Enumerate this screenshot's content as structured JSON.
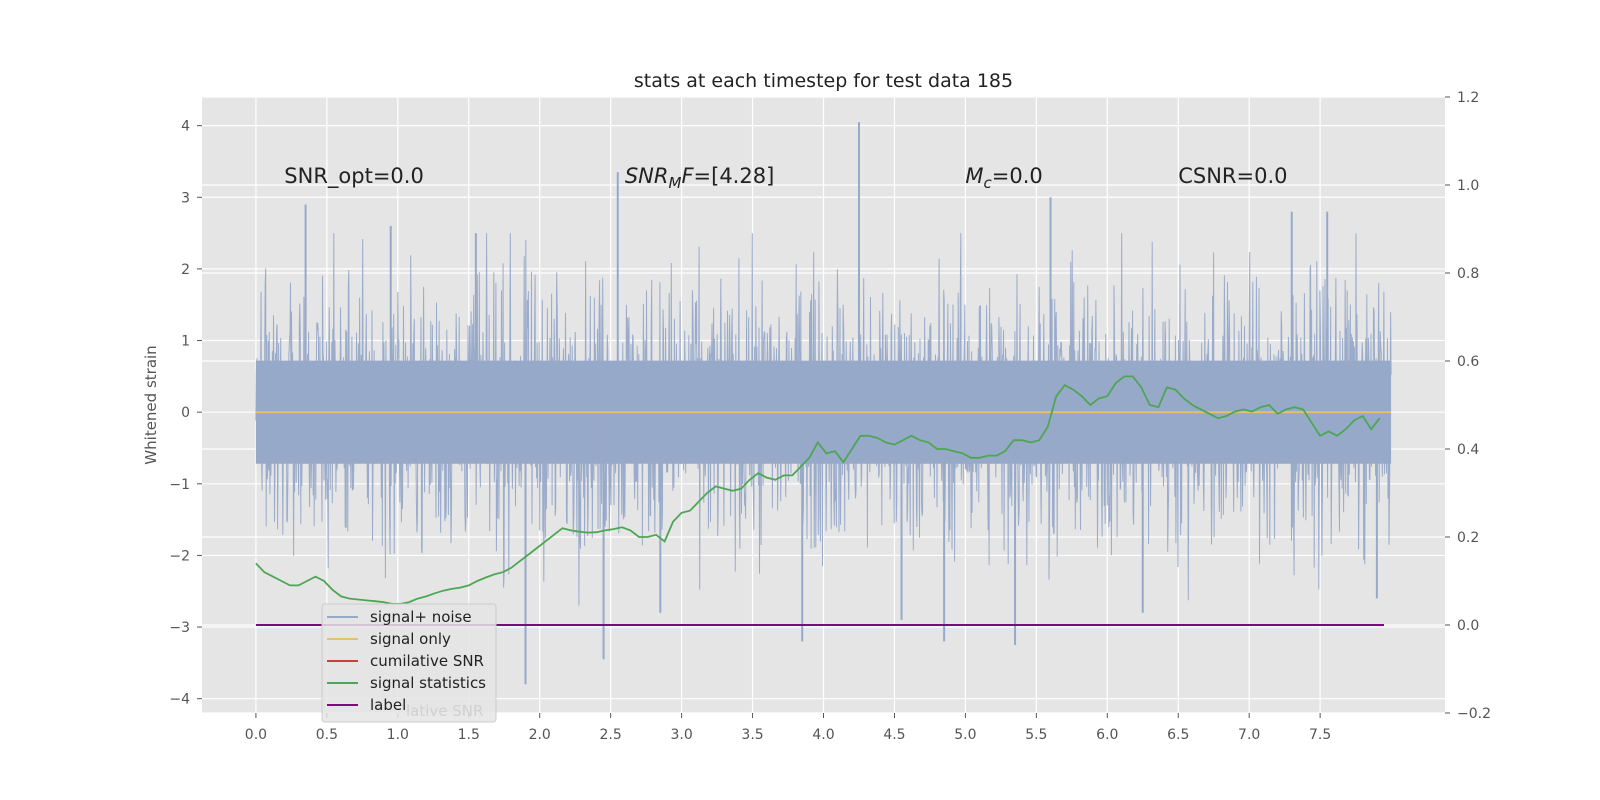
{
  "chart_data": {
    "type": "line",
    "title": "stats at each timestep for test data 185",
    "ylabel": "Whitened strain",
    "xlim": [
      -0.38,
      8.38
    ],
    "ylim": [
      -4.2,
      4.4
    ],
    "y2lim": [
      -0.2,
      1.2
    ],
    "xticks": [
      "0.0",
      "0.5",
      "1.0",
      "1.5",
      "2.0",
      "2.5",
      "3.0",
      "3.5",
      "4.0",
      "4.5",
      "5.0",
      "5.5",
      "6.0",
      "6.5",
      "7.0",
      "7.5"
    ],
    "yticks": [
      "4",
      "3",
      "2",
      "1",
      "0",
      "−1",
      "−2",
      "−3",
      "−4"
    ],
    "y2ticks": [
      "1.2",
      "1.0",
      "0.8",
      "0.6",
      "0.4",
      "0.2",
      "0.0",
      "−0.2"
    ],
    "grid": true,
    "legend_position": "lower-left",
    "colors": {
      "background": "#e5e5e5",
      "signal_noise": "#97a9c9",
      "signal_only": "#e7c064",
      "cumulative_snr": "#d03b3b",
      "signal_statistics": "#4ea654",
      "label": "#7b0a7b"
    },
    "annotations": [
      {
        "text": "SNR_opt=0.0",
        "x": 0.2,
        "y": 3.3
      },
      {
        "text": "F=[4.28]",
        "math_prefix": "SNR",
        "math_sub": "M",
        "x": 2.6,
        "y": 3.3
      },
      {
        "text": "=0.0",
        "math_prefix": "M",
        "math_sub": "c",
        "x": 5.0,
        "y": 3.3
      },
      {
        "text": "CSNR=0.0",
        "x": 6.5,
        "y": 3.3
      }
    ],
    "noise_band": {
      "x_start": 0.0,
      "x_end": 8.0,
      "typical_min": -1.6,
      "typical_max": 1.6
    },
    "noise_spikes": [
      {
        "x": 0.35,
        "y": 2.9
      },
      {
        "x": 0.95,
        "y": 2.6
      },
      {
        "x": 1.55,
        "y": 2.5
      },
      {
        "x": 1.9,
        "y": -3.8
      },
      {
        "x": 2.45,
        "y": -3.45
      },
      {
        "x": 2.55,
        "y": 3.35
      },
      {
        "x": 2.85,
        "y": -2.8
      },
      {
        "x": 3.85,
        "y": -3.2
      },
      {
        "x": 4.25,
        "y": 4.05
      },
      {
        "x": 4.55,
        "y": -2.9
      },
      {
        "x": 4.85,
        "y": -3.2
      },
      {
        "x": 5.35,
        "y": -3.25
      },
      {
        "x": 5.6,
        "y": 3.0
      },
      {
        "x": 6.25,
        "y": -2.8
      },
      {
        "x": 7.3,
        "y": 2.8
      },
      {
        "x": 7.55,
        "y": 2.8
      },
      {
        "x": 7.9,
        "y": -2.6
      }
    ],
    "series": [
      {
        "name": "signal+ noise",
        "axis": "left",
        "values": [],
        "note_type": "noise"
      },
      {
        "name": "signal only",
        "axis": "left",
        "x": [
          0.0,
          8.0
        ],
        "values": [
          0.0,
          0.0
        ]
      },
      {
        "name": "cumilative SNR",
        "axis": "right",
        "x": [],
        "values": []
      },
      {
        "name": "signal statistics",
        "axis": "right",
        "x": [
          0.0,
          0.06,
          0.12,
          0.18,
          0.24,
          0.3,
          0.36,
          0.42,
          0.48,
          0.54,
          0.6,
          0.66,
          0.72,
          0.78,
          0.84,
          0.9,
          0.96,
          1.02,
          1.08,
          1.14,
          1.2,
          1.26,
          1.32,
          1.38,
          1.44,
          1.5,
          1.56,
          1.62,
          1.68,
          1.74,
          1.8,
          1.86,
          1.92,
          1.98,
          2.04,
          2.1,
          2.16,
          2.22,
          2.28,
          2.34,
          2.4,
          2.46,
          2.52,
          2.58,
          2.64,
          2.7,
          2.76,
          2.82,
          2.88,
          2.94,
          3.0,
          3.06,
          3.12,
          3.18,
          3.24,
          3.3,
          3.36,
          3.42,
          3.48,
          3.54,
          3.6,
          3.66,
          3.72,
          3.78,
          3.84,
          3.9,
          3.96,
          4.02,
          4.08,
          4.14,
          4.2,
          4.26,
          4.32,
          4.38,
          4.44,
          4.5,
          4.56,
          4.62,
          4.68,
          4.74,
          4.8,
          4.86,
          4.92,
          4.98,
          5.04,
          5.1,
          5.16,
          5.22,
          5.28,
          5.34,
          5.4,
          5.46,
          5.52,
          5.58,
          5.64,
          5.7,
          5.76,
          5.82,
          5.88,
          5.94,
          6.0,
          6.06,
          6.12,
          6.18,
          6.24,
          6.3,
          6.36,
          6.42,
          6.48,
          6.54,
          6.6,
          6.66,
          6.72,
          6.78,
          6.84,
          6.9,
          6.96,
          7.02,
          7.08,
          7.14,
          7.2,
          7.26,
          7.32,
          7.38,
          7.44,
          7.5,
          7.56,
          7.62,
          7.68,
          7.74,
          7.8,
          7.86,
          7.92
        ],
        "values": [
          0.14,
          0.12,
          0.11,
          0.1,
          0.09,
          0.09,
          0.1,
          0.11,
          0.1,
          0.08,
          0.065,
          0.06,
          0.058,
          0.056,
          0.054,
          0.052,
          0.048,
          0.048,
          0.052,
          0.06,
          0.065,
          0.072,
          0.078,
          0.082,
          0.085,
          0.09,
          0.1,
          0.108,
          0.115,
          0.12,
          0.13,
          0.145,
          0.16,
          0.175,
          0.19,
          0.205,
          0.22,
          0.215,
          0.212,
          0.21,
          0.211,
          0.215,
          0.218,
          0.222,
          0.215,
          0.2,
          0.2,
          0.205,
          0.19,
          0.235,
          0.255,
          0.26,
          0.28,
          0.3,
          0.315,
          0.31,
          0.305,
          0.31,
          0.33,
          0.345,
          0.335,
          0.33,
          0.34,
          0.34,
          0.36,
          0.38,
          0.415,
          0.39,
          0.395,
          0.37,
          0.4,
          0.43,
          0.43,
          0.425,
          0.415,
          0.41,
          0.42,
          0.43,
          0.42,
          0.415,
          0.4,
          0.4,
          0.395,
          0.39,
          0.38,
          0.38,
          0.385,
          0.385,
          0.395,
          0.42,
          0.42,
          0.415,
          0.42,
          0.45,
          0.52,
          0.545,
          0.535,
          0.52,
          0.5,
          0.515,
          0.52,
          0.55,
          0.565,
          0.565,
          0.54,
          0.5,
          0.495,
          0.54,
          0.535,
          0.515,
          0.5,
          0.49,
          0.48,
          0.47,
          0.475,
          0.485,
          0.49,
          0.485,
          0.495,
          0.5,
          0.48,
          0.49,
          0.495,
          0.49,
          0.46,
          0.43,
          0.44,
          0.43,
          0.445,
          0.465,
          0.475,
          0.445,
          0.47
        ]
      },
      {
        "name": "label",
        "axis": "right",
        "x": [
          0.0,
          7.95
        ],
        "values": [
          0.0,
          0.0
        ]
      }
    ]
  },
  "legend": {
    "items": [
      {
        "label": "signal+ noise",
        "color": "#97a9c9"
      },
      {
        "label": "signal only",
        "color": "#e7c064"
      },
      {
        "label": "cumilative SNR",
        "color": "#d03b3b"
      },
      {
        "label": "signal statistics",
        "color": "#4ea654"
      },
      {
        "label": "label",
        "color": "#7b0a7b"
      }
    ],
    "ghost_label": "lative SNR"
  }
}
